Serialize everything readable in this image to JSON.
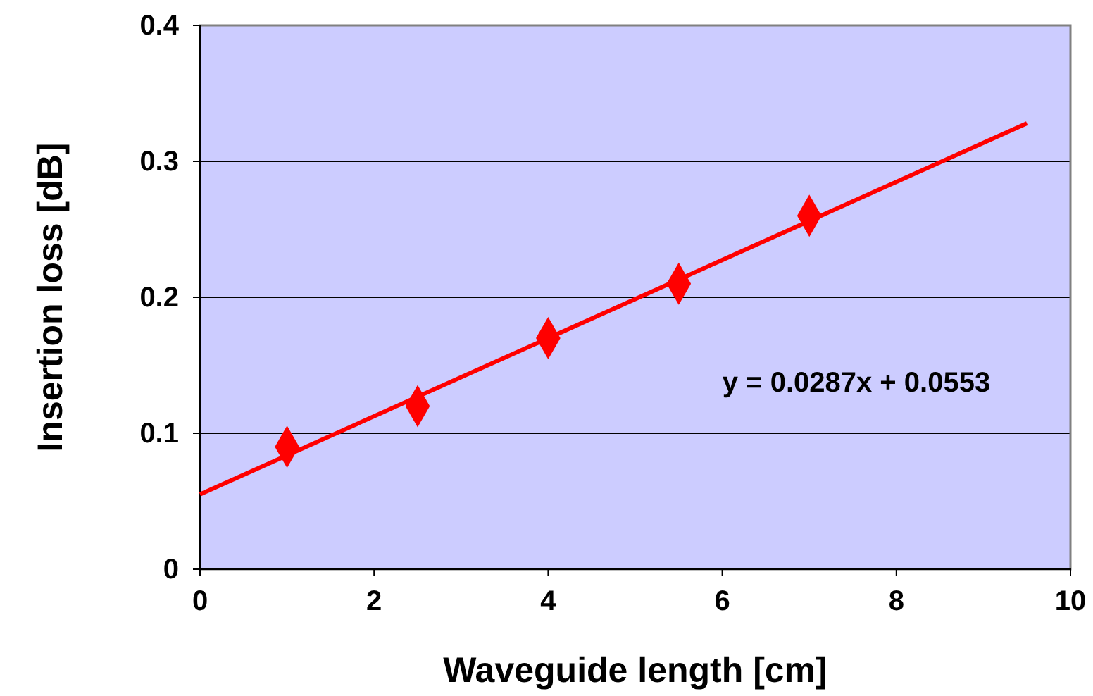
{
  "chart_data": {
    "type": "scatter",
    "xlabel": "Waveguide length  [cm]",
    "ylabel": "Insertion loss  [dB]",
    "xlim": [
      0,
      10
    ],
    "xticks": [
      0,
      2,
      4,
      6,
      8,
      10
    ],
    "ylim": [
      0,
      0.4
    ],
    "yticks": [
      0,
      0.1,
      0.2,
      0.3,
      0.4
    ],
    "grid": "y",
    "marker": "diamond",
    "series": [
      {
        "color": "#ff0000",
        "x": [
          1,
          2.5,
          4,
          5.5,
          7
        ],
        "values": [
          0.09,
          0.12,
          0.17,
          0.21,
          0.26
        ]
      },
      {
        "type": "line",
        "color": "#ff0000",
        "x": [
          0,
          9.5
        ],
        "values": [
          0.055,
          0.328
        ],
        "marker": "none",
        "line_style": "solid"
      }
    ],
    "annotations": [
      "y = 0.0287x + 0.0553"
    ]
  }
}
